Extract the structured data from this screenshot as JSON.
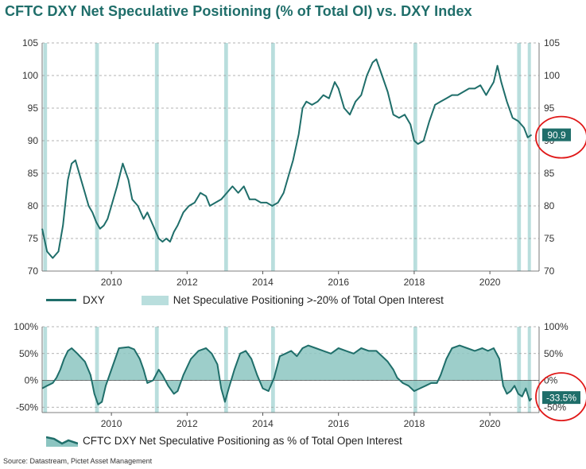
{
  "title": "CFTC DXY Net Speculative Positioning (% of Total OI) vs. DXY Index",
  "source": "Source: Datastream, Pictet Asset Management",
  "colors": {
    "line": "#1f6e6a",
    "band": "#b9dedd",
    "area": "#8cc5c1",
    "badge": "#1f6e6a",
    "circle": "#e01818",
    "grid": "#9a9a9a"
  },
  "chart_data": [
    {
      "type": "line",
      "series": [
        {
          "name": "DXY",
          "x": [
            2008.17,
            2008.3,
            2008.45,
            2008.6,
            2008.72,
            2008.85,
            2008.95,
            2009.05,
            2009.2,
            2009.3,
            2009.4,
            2009.5,
            2009.6,
            2009.7,
            2009.8,
            2009.9,
            2010.0,
            2010.15,
            2010.3,
            2010.45,
            2010.55,
            2010.7,
            2010.85,
            2010.95,
            2011.1,
            2011.25,
            2011.35,
            2011.45,
            2011.55,
            2011.65,
            2011.75,
            2011.9,
            2012.05,
            2012.2,
            2012.35,
            2012.5,
            2012.6,
            2012.75,
            2012.9,
            2013.05,
            2013.2,
            2013.35,
            2013.5,
            2013.65,
            2013.8,
            2013.95,
            2014.1,
            2014.25,
            2014.4,
            2014.55,
            2014.7,
            2014.8,
            2014.95,
            2015.05,
            2015.15,
            2015.3,
            2015.45,
            2015.6,
            2015.75,
            2015.9,
            2016.0,
            2016.15,
            2016.3,
            2016.45,
            2016.6,
            2016.75,
            2016.9,
            2017.0,
            2017.15,
            2017.3,
            2017.45,
            2017.6,
            2017.75,
            2017.9,
            2018.0,
            2018.1,
            2018.25,
            2018.4,
            2018.55,
            2018.7,
            2018.85,
            2019.0,
            2019.15,
            2019.3,
            2019.45,
            2019.6,
            2019.75,
            2019.9,
            2020.0,
            2020.1,
            2020.2,
            2020.3,
            2020.45,
            2020.6,
            2020.75,
            2020.9,
            2021.0,
            2021.1
          ],
          "values": [
            76.5,
            73,
            72,
            73,
            77,
            84,
            86.5,
            87,
            84,
            82,
            80,
            79,
            77.5,
            76.5,
            77,
            78,
            80,
            83,
            86.5,
            84,
            81,
            80,
            78,
            79,
            77,
            75,
            74.5,
            75,
            74.5,
            76,
            77,
            79,
            80,
            80.5,
            82,
            81.5,
            80,
            80.5,
            81,
            82,
            83,
            82,
            83,
            81,
            81,
            80.5,
            80.5,
            80,
            80.5,
            82,
            85,
            87,
            91,
            95,
            96,
            95.5,
            96,
            97,
            96.5,
            99,
            98,
            95,
            94,
            96,
            97,
            100,
            102,
            102.5,
            100,
            97.5,
            94,
            93.5,
            94,
            92.5,
            90,
            89.5,
            90,
            93,
            95.5,
            96,
            96.5,
            97,
            97,
            97.5,
            98,
            98,
            98.5,
            97,
            98,
            99,
            101.5,
            99,
            96,
            93.5,
            93,
            92,
            90.5,
            90.9
          ],
          "label": "90.9"
        },
        {
          "name": "CFTC DXY Net Speculative Positioning as % of Total Open Interest",
          "x": [
            2008.17,
            2008.3,
            2008.45,
            2008.55,
            2008.65,
            2008.75,
            2008.85,
            2008.95,
            2009.1,
            2009.3,
            2009.45,
            2009.55,
            2009.65,
            2009.75,
            2009.85,
            2010.0,
            2010.2,
            2010.45,
            2010.6,
            2010.75,
            2010.85,
            2010.95,
            2011.1,
            2011.25,
            2011.35,
            2011.5,
            2011.65,
            2011.75,
            2011.9,
            2012.1,
            2012.3,
            2012.5,
            2012.65,
            2012.8,
            2012.9,
            2013.0,
            2013.1,
            2013.25,
            2013.4,
            2013.55,
            2013.7,
            2013.85,
            2014.0,
            2014.15,
            2014.3,
            2014.45,
            2014.6,
            2014.75,
            2014.9,
            2015.05,
            2015.2,
            2015.4,
            2015.6,
            2015.8,
            2016.0,
            2016.2,
            2016.4,
            2016.6,
            2016.8,
            2017.0,
            2017.15,
            2017.3,
            2017.45,
            2017.55,
            2017.7,
            2017.85,
            2018.0,
            2018.15,
            2018.3,
            2018.45,
            2018.6,
            2018.7,
            2018.85,
            2019.0,
            2019.2,
            2019.4,
            2019.6,
            2019.8,
            2019.95,
            2020.1,
            2020.25,
            2020.35,
            2020.45,
            2020.55,
            2020.65,
            2020.75,
            2020.85,
            2020.95,
            2021.05,
            2021.1
          ],
          "values": [
            -15,
            -10,
            -5,
            5,
            20,
            40,
            55,
            60,
            50,
            35,
            10,
            -25,
            -45,
            -40,
            -10,
            20,
            60,
            62,
            58,
            40,
            20,
            -5,
            0,
            20,
            10,
            -10,
            -25,
            -20,
            10,
            40,
            55,
            60,
            50,
            30,
            -15,
            -40,
            -15,
            20,
            50,
            55,
            40,
            10,
            -15,
            -20,
            5,
            45,
            50,
            55,
            45,
            60,
            65,
            60,
            55,
            50,
            60,
            55,
            50,
            60,
            55,
            55,
            45,
            35,
            20,
            5,
            -5,
            -10,
            -20,
            -15,
            -10,
            -5,
            -5,
            10,
            40,
            60,
            65,
            60,
            55,
            60,
            55,
            60,
            40,
            -10,
            -25,
            -20,
            -10,
            -25,
            -30,
            -15,
            -38,
            -33.5
          ],
          "label": "-33.5%"
        }
      ],
      "bands": [
        [
          2008.2,
          2008.3
        ],
        [
          2009.57,
          2009.67
        ],
        [
          2011.15,
          2011.25
        ],
        [
          2012.98,
          2013.08
        ],
        [
          2014.22,
          2014.32
        ],
        [
          2017.98,
          2018.08
        ],
        [
          2020.72,
          2020.82
        ],
        [
          2021.0,
          2021.08
        ]
      ],
      "band_label": "Net Speculative Positioning >-20% of Total Open Interest",
      "x_range": [
        2008.17,
        2021.3
      ],
      "xticks": [
        "2010",
        "2012",
        "2014",
        "2016",
        "2018",
        "2020"
      ],
      "top_panel": {
        "ylim": [
          70,
          105
        ],
        "yticks": [
          "70",
          "75",
          "80",
          "85",
          "90",
          "95",
          "100",
          "105"
        ]
      },
      "bottom_panel": {
        "ylim": [
          -60,
          100
        ],
        "yticks": [
          "-50%",
          "0%",
          "50%",
          "100%"
        ]
      },
      "grid": true
    }
  ]
}
